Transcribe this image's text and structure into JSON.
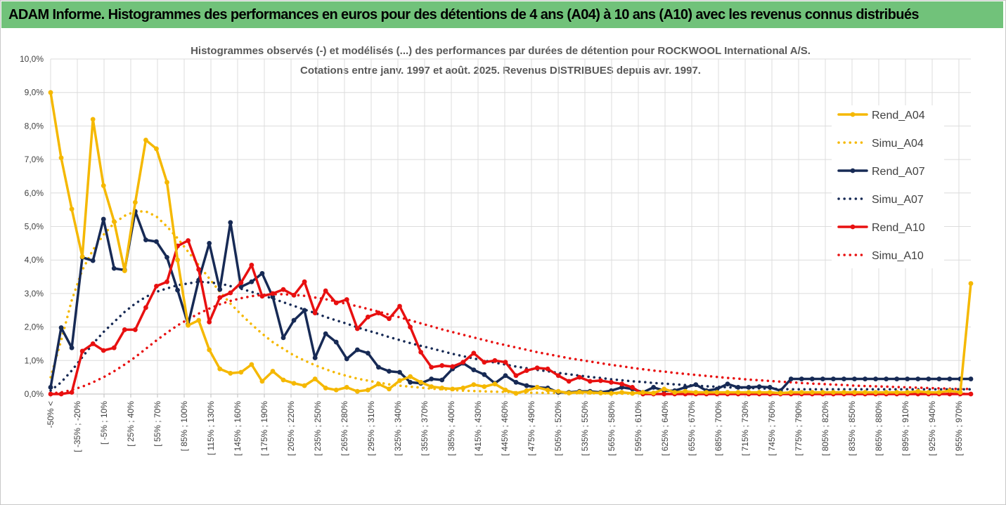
{
  "banner": {
    "title": "ADAM Informe. Histogrammes des performances en euros pour des détentions de 4 ans (A04) à 10 ans (A10) avec les revenus connus distribués"
  },
  "chart_data": {
    "type": "line",
    "title_lines": [
      "Histogrammes observés (-) et modélisés (...) des performances par durées de détention pour ROCKWOOL International A/S.",
      "Cotations entre janv. 1997 et août. 2025. Revenus DISTRIBUES depuis avr. 1997."
    ],
    "ylim": [
      0,
      10
    ],
    "yticks": [
      "0,0%",
      "1,0%",
      "2,0%",
      "3,0%",
      "4,0%",
      "5,0%",
      "6,0%",
      "7,0%",
      "8,0%",
      "9,0%",
      "10,0%"
    ],
    "xtick_labels": [
      "-50% <",
      "[ -35% ; -20%",
      "[ -5% ; 10%",
      "[ 25% ; 40%",
      "[ 55% ; 70%",
      "[ 85% ; 100%",
      "[ 115% ; 130%",
      "[ 145% ; 160%",
      "[ 175% ; 190%",
      "[ 205% ; 220%",
      "[ 235% ; 250%",
      "[ 265% ; 280%",
      "[ 295% ; 310%",
      "[ 325% ; 340%",
      "[ 355% ; 370%",
      "[ 385% ; 400%",
      "[ 415% ; 430%",
      "[ 445% ; 460%",
      "[ 475% ; 490%",
      "[ 505% ; 520%",
      "[ 535% ; 550%",
      "[ 565% ; 580%",
      "[ 595% ; 610%",
      "[ 625% ; 640%",
      "[ 655% ; 670%",
      "[ 685% ; 700%",
      "[ 715% ; 730%",
      "[ 745% ; 760%",
      "[ 775% ; 790%",
      "[ 805% ; 820%",
      "[ 835% ; 850%",
      "[ 865% ; 880%",
      "[ 895% ; 910%",
      "[ 925% ; 940%",
      "[ 955% ; 970%"
    ],
    "grid": true,
    "legend": "right",
    "series": [
      {
        "name": "Rend_A04",
        "style": "solid",
        "markers": true,
        "color": "#f5b800",
        "values": [
          9.0,
          7.05,
          5.52,
          4.1,
          8.2,
          6.22,
          5.15,
          3.68,
          5.72,
          7.58,
          7.32,
          6.32,
          4.0,
          2.05,
          2.2,
          1.32,
          0.75,
          0.62,
          0.65,
          0.88,
          0.38,
          0.68,
          0.42,
          0.32,
          0.25,
          0.45,
          0.18,
          0.12,
          0.2,
          0.08,
          0.12,
          0.3,
          0.15,
          0.4,
          0.52,
          0.35,
          0.22,
          0.18,
          0.15,
          0.18,
          0.28,
          0.22,
          0.3,
          0.12,
          0.02,
          0.1,
          0.2,
          0.12,
          0.08,
          0.03,
          0.06,
          0.05,
          0.03,
          0.02,
          0.05,
          0.02,
          0.05,
          0.03,
          0.15,
          0.05,
          0.08,
          0.05,
          0.05,
          0.05,
          0.05,
          0.05,
          0.05,
          0.05,
          0.05,
          0.03,
          0.05,
          0.05,
          0.05,
          0.05,
          0.05,
          0.05,
          0.05,
          0.05,
          0.05,
          0.05,
          0.05,
          0.05,
          0.08,
          0.05,
          0.05,
          0.1,
          0.05,
          3.3
        ]
      },
      {
        "name": "Simu_A04",
        "style": "dotted",
        "markers": false,
        "color": "#f5b800",
        "values": [
          0.5,
          1.6,
          2.8,
          3.7,
          4.3,
          4.75,
          5.1,
          5.32,
          5.45,
          5.45,
          5.3,
          5.0,
          4.65,
          4.25,
          3.85,
          3.45,
          3.05,
          2.7,
          2.38,
          2.08,
          1.8,
          1.55,
          1.35,
          1.15,
          1.0,
          0.86,
          0.74,
          0.63,
          0.54,
          0.46,
          0.4,
          0.34,
          0.29,
          0.25,
          0.22,
          0.19,
          0.16,
          0.14,
          0.12,
          0.1,
          0.09,
          0.08,
          0.07,
          0.06,
          0.05,
          0.04,
          0.04,
          0.03,
          0.03,
          0.02,
          0.02,
          0.02,
          0.02,
          0.01,
          0.01,
          0.01,
          0.01,
          0.01,
          0.01,
          0.01,
          0.01,
          0.01,
          0.01,
          0.01,
          0.01,
          0.01,
          0.01,
          0.01,
          0.01,
          0.01,
          0.01,
          0.01,
          0.01,
          0.01,
          0.01,
          0.01,
          0.01,
          0.01,
          0.01,
          0.01,
          0.01,
          0.01,
          0.01,
          0.01,
          0.01,
          0.01,
          0.01,
          0.01
        ]
      },
      {
        "name": "Rend_A07",
        "style": "solid",
        "markers": true,
        "color": "#172a55",
        "values": [
          0.2,
          1.98,
          1.38,
          4.08,
          3.98,
          5.22,
          3.75,
          3.7,
          5.45,
          4.6,
          4.55,
          4.08,
          3.1,
          2.08,
          3.4,
          4.5,
          3.12,
          5.12,
          3.2,
          3.35,
          3.6,
          2.9,
          1.68,
          2.2,
          2.5,
          1.08,
          1.8,
          1.55,
          1.05,
          1.32,
          1.22,
          0.8,
          0.68,
          0.65,
          0.35,
          0.32,
          0.45,
          0.42,
          0.75,
          0.92,
          0.72,
          0.58,
          0.32,
          0.55,
          0.35,
          0.25,
          0.2,
          0.18,
          0.05,
          0.05,
          0.08,
          0.08,
          0.05,
          0.1,
          0.2,
          0.15,
          0.05,
          0.2,
          0.1,
          0.1,
          0.2,
          0.28,
          0.1,
          0.15,
          0.3,
          0.2,
          0.2,
          0.22,
          0.2,
          0.1,
          0.45,
          0.45,
          0.45,
          0.45,
          0.45,
          0.45,
          0.45,
          0.45,
          0.45,
          0.45,
          0.45,
          0.45,
          0.45,
          0.45,
          0.45,
          0.45,
          0.45,
          0.45
        ]
      },
      {
        "name": "Simu_A07",
        "style": "dotted",
        "markers": false,
        "color": "#172a55",
        "values": [
          0.1,
          0.35,
          0.7,
          1.1,
          1.5,
          1.85,
          2.15,
          2.45,
          2.7,
          2.9,
          3.05,
          3.15,
          3.25,
          3.3,
          3.35,
          3.33,
          3.3,
          3.22,
          3.14,
          3.05,
          2.95,
          2.85,
          2.74,
          2.63,
          2.52,
          2.42,
          2.3,
          2.2,
          2.1,
          1.99,
          1.89,
          1.8,
          1.7,
          1.61,
          1.52,
          1.44,
          1.36,
          1.28,
          1.2,
          1.13,
          1.06,
          1.0,
          0.94,
          0.88,
          0.82,
          0.77,
          0.72,
          0.68,
          0.63,
          0.59,
          0.55,
          0.51,
          0.48,
          0.44,
          0.41,
          0.38,
          0.36,
          0.33,
          0.31,
          0.29,
          0.27,
          0.25,
          0.23,
          0.22,
          0.2,
          0.19,
          0.18,
          0.17,
          0.16,
          0.15,
          0.14,
          0.14,
          0.14,
          0.14,
          0.14,
          0.14,
          0.14,
          0.14,
          0.14,
          0.14,
          0.14,
          0.14,
          0.14,
          0.14,
          0.14,
          0.14,
          0.14,
          0.14
        ]
      },
      {
        "name": "Rend_A10",
        "style": "solid",
        "markers": true,
        "color": "#e81010",
        "values": [
          0.0,
          0.0,
          0.05,
          1.28,
          1.5,
          1.3,
          1.38,
          1.92,
          1.92,
          2.58,
          3.22,
          3.35,
          4.42,
          4.58,
          3.72,
          2.15,
          2.88,
          3.02,
          3.32,
          3.85,
          2.92,
          3.0,
          3.12,
          2.95,
          3.35,
          2.42,
          3.08,
          2.72,
          2.82,
          1.95,
          2.3,
          2.42,
          2.25,
          2.62,
          2.0,
          1.25,
          0.8,
          0.85,
          0.82,
          0.95,
          1.22,
          0.95,
          1.0,
          0.95,
          0.55,
          0.7,
          0.78,
          0.75,
          0.55,
          0.38,
          0.5,
          0.38,
          0.4,
          0.35,
          0.3,
          0.2,
          0.0,
          0.0,
          0.0,
          0.0,
          0.0,
          0.0,
          0.0,
          0.0,
          0.0,
          0.0,
          0.0,
          0.0,
          0.0,
          0.0,
          0.0,
          0.0,
          0.0,
          0.0,
          0.0,
          0.0,
          0.0,
          0.0,
          0.0,
          0.0,
          0.0,
          0.0,
          0.0,
          0.0,
          0.0,
          0.0,
          0.0,
          0.0
        ]
      },
      {
        "name": "Simu_A10",
        "style": "dotted",
        "markers": false,
        "color": "#e81010",
        "values": [
          0.02,
          0.05,
          0.12,
          0.22,
          0.35,
          0.5,
          0.68,
          0.88,
          1.1,
          1.35,
          1.6,
          1.83,
          2.05,
          2.23,
          2.4,
          2.55,
          2.68,
          2.78,
          2.86,
          2.92,
          2.96,
          2.98,
          2.98,
          2.96,
          2.93,
          2.88,
          2.83,
          2.76,
          2.69,
          2.62,
          2.54,
          2.46,
          2.37,
          2.29,
          2.2,
          2.11,
          2.02,
          1.93,
          1.85,
          1.77,
          1.69,
          1.61,
          1.53,
          1.46,
          1.39,
          1.32,
          1.25,
          1.19,
          1.13,
          1.07,
          1.02,
          0.97,
          0.92,
          0.87,
          0.83,
          0.78,
          0.74,
          0.7,
          0.67,
          0.63,
          0.6,
          0.57,
          0.54,
          0.51,
          0.48,
          0.46,
          0.43,
          0.41,
          0.39,
          0.37,
          0.35,
          0.33,
          0.31,
          0.3,
          0.28,
          0.27,
          0.25,
          0.24,
          0.23,
          0.22,
          0.21,
          0.2,
          0.19,
          0.18,
          0.17,
          0.16,
          0.15,
          0.15
        ]
      }
    ]
  }
}
